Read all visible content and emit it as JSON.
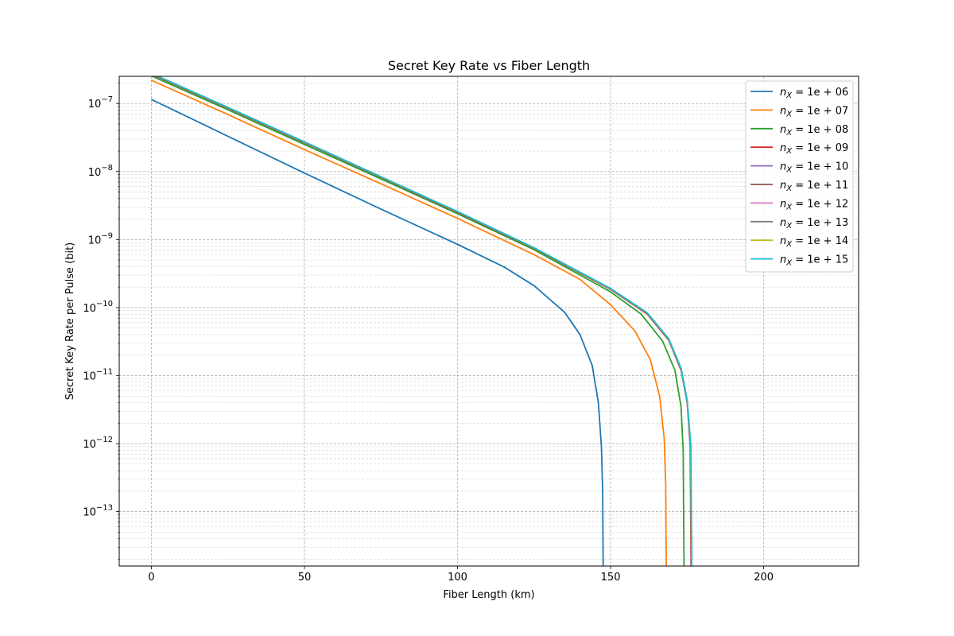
{
  "chart_data": {
    "type": "line",
    "title": "Secret Key Rate vs Fiber Length",
    "xlabel": "Fiber Length (km)",
    "ylabel": "Secret Key Rate per Pulse (bit)",
    "xlim": [
      -10.5,
      231
    ],
    "ylim_log10": [
      -13.8,
      -6.6
    ],
    "yscale": "log",
    "grid": true,
    "grid_minor": true,
    "legend_position": "upper-right",
    "x_ticks": [
      0,
      50,
      100,
      150,
      200
    ],
    "x_tick_labels": [
      "0",
      "50",
      "100",
      "150",
      "200"
    ],
    "y_ticks_log10": [
      -13,
      -12,
      -11,
      -10,
      -9,
      -8,
      -7
    ],
    "y_tick_labels": [
      "−13",
      "−12",
      "−11",
      "−10",
      "−9",
      "−8",
      "−7"
    ],
    "y_tick_base": "10",
    "series": [
      {
        "name": "n_X = 1e+06",
        "legend_var": "n",
        "legend_sub": "X",
        "legend_rhs": " = 1e + 06",
        "color": "#1f77b4",
        "points": [
          [
            0,
            1.15e-07
          ],
          [
            25,
            3.3e-08
          ],
          [
            50,
            9.5e-09
          ],
          [
            75,
            2.8e-09
          ],
          [
            100,
            8.5e-10
          ],
          [
            115,
            4e-10
          ],
          [
            125,
            2.1e-10
          ],
          [
            135,
            8.5e-11
          ],
          [
            140,
            4e-11
          ],
          [
            144,
            1.4e-11
          ],
          [
            146,
            4e-12
          ],
          [
            147,
            9e-13
          ],
          [
            147.4,
            2e-13
          ],
          [
            147.6,
            1e-14
          ]
        ]
      },
      {
        "name": "n_X = 1e+07",
        "legend_var": "n",
        "legend_sub": "X",
        "legend_rhs": " = 1e + 07",
        "color": "#ff7f0e",
        "points": [
          [
            0,
            2.2e-07
          ],
          [
            25,
            6.9e-08
          ],
          [
            50,
            2.1e-08
          ],
          [
            75,
            6.6e-09
          ],
          [
            100,
            2.05e-09
          ],
          [
            125,
            6e-10
          ],
          [
            140,
            2.6e-10
          ],
          [
            150,
            1.1e-10
          ],
          [
            158,
            4.5e-11
          ],
          [
            163,
            1.7e-11
          ],
          [
            166,
            5e-12
          ],
          [
            167.5,
            1.2e-12
          ],
          [
            168,
            2.5e-13
          ],
          [
            168.2,
            1e-14
          ]
        ]
      },
      {
        "name": "n_X = 1e+08",
        "legend_var": "n",
        "legend_sub": "X",
        "legend_rhs": " = 1e + 08",
        "color": "#2ca02c",
        "points": [
          [
            0,
            2.55e-07
          ],
          [
            25,
            8.1e-08
          ],
          [
            50,
            2.5e-08
          ],
          [
            75,
            7.8e-09
          ],
          [
            100,
            2.4e-09
          ],
          [
            125,
            7.1e-10
          ],
          [
            150,
            1.7e-10
          ],
          [
            160,
            8e-11
          ],
          [
            167,
            3.2e-11
          ],
          [
            171,
            1.2e-11
          ],
          [
            173,
            3.5e-12
          ],
          [
            173.7,
            8e-13
          ],
          [
            174,
            1e-14
          ]
        ]
      },
      {
        "name": "n_X = 1e+09",
        "legend_var": "n",
        "legend_sub": "X",
        "legend_rhs": " = 1e + 09",
        "color": "#d62728",
        "points": [
          [
            0,
            2.7e-07
          ],
          [
            25,
            8.55e-08
          ],
          [
            50,
            2.65e-08
          ],
          [
            75,
            8.2e-09
          ],
          [
            100,
            2.5e-09
          ],
          [
            125,
            7.4e-10
          ],
          [
            150,
            1.85e-10
          ],
          [
            162,
            8e-11
          ],
          [
            169,
            3.3e-11
          ],
          [
            173,
            1.2e-11
          ],
          [
            175,
            4e-12
          ],
          [
            176,
            9e-13
          ],
          [
            176.3,
            1e-14
          ]
        ]
      },
      {
        "name": "n_X = 1e+10",
        "legend_var": "n",
        "legend_sub": "X",
        "legend_rhs": " = 1e + 10",
        "color": "#9467bd",
        "points": [
          [
            0,
            2.75e-07
          ],
          [
            25,
            8.7e-08
          ],
          [
            50,
            2.7e-08
          ],
          [
            75,
            8.3e-09
          ],
          [
            100,
            2.55e-09
          ],
          [
            125,
            7.5e-10
          ],
          [
            150,
            1.88e-10
          ],
          [
            162,
            8.2e-11
          ],
          [
            169,
            3.4e-11
          ],
          [
            173,
            1.25e-11
          ],
          [
            175,
            4.2e-12
          ],
          [
            176.1,
            9e-13
          ],
          [
            176.4,
            1e-14
          ]
        ]
      },
      {
        "name": "n_X = 1e+11",
        "legend_var": "n",
        "legend_sub": "X",
        "legend_rhs": " = 1e + 11",
        "color": "#8c564b",
        "points": [
          [
            0,
            2.76e-07
          ],
          [
            25,
            8.72e-08
          ],
          [
            50,
            2.71e-08
          ],
          [
            75,
            8.32e-09
          ],
          [
            100,
            2.56e-09
          ],
          [
            125,
            7.52e-10
          ],
          [
            150,
            1.89e-10
          ],
          [
            162,
            8.25e-11
          ],
          [
            169,
            3.42e-11
          ],
          [
            173,
            1.26e-11
          ],
          [
            175,
            4.25e-12
          ],
          [
            176.1,
            9.2e-13
          ],
          [
            176.45,
            1e-14
          ]
        ]
      },
      {
        "name": "n_X = 1e+12",
        "legend_var": "n",
        "legend_sub": "X",
        "legend_rhs": " = 1e + 12",
        "color": "#e377c2",
        "points": [
          [
            0,
            2.77e-07
          ],
          [
            25,
            8.74e-08
          ],
          [
            50,
            2.72e-08
          ],
          [
            75,
            8.34e-09
          ],
          [
            100,
            2.57e-09
          ],
          [
            125,
            7.54e-10
          ],
          [
            150,
            1.9e-10
          ],
          [
            162,
            8.3e-11
          ],
          [
            169,
            3.44e-11
          ],
          [
            173,
            1.27e-11
          ],
          [
            175,
            4.3e-12
          ],
          [
            176.15,
            9.3e-13
          ],
          [
            176.5,
            1e-14
          ]
        ]
      },
      {
        "name": "n_X = 1e+13",
        "legend_var": "n",
        "legend_sub": "X",
        "legend_rhs": " = 1e + 13",
        "color": "#7f7f7f",
        "points": [
          [
            0,
            2.77e-07
          ],
          [
            25,
            8.75e-08
          ],
          [
            50,
            2.72e-08
          ],
          [
            75,
            8.35e-09
          ],
          [
            100,
            2.57e-09
          ],
          [
            125,
            7.55e-10
          ],
          [
            150,
            1.9e-10
          ],
          [
            162,
            8.3e-11
          ],
          [
            169,
            3.45e-11
          ],
          [
            173,
            1.27e-11
          ],
          [
            175,
            4.3e-12
          ],
          [
            176.15,
            9.3e-13
          ],
          [
            176.5,
            1e-14
          ]
        ]
      },
      {
        "name": "n_X = 1e+14",
        "legend_var": "n",
        "legend_sub": "X",
        "legend_rhs": " = 1e + 14",
        "color": "#bcbd22",
        "points": [
          [
            0,
            2.77e-07
          ],
          [
            25,
            8.75e-08
          ],
          [
            50,
            2.72e-08
          ],
          [
            75,
            8.35e-09
          ],
          [
            100,
            2.57e-09
          ],
          [
            125,
            7.55e-10
          ],
          [
            150,
            1.9e-10
          ],
          [
            162,
            8.3e-11
          ],
          [
            169,
            3.45e-11
          ],
          [
            173,
            1.27e-11
          ],
          [
            175,
            4.3e-12
          ],
          [
            176.15,
            9.3e-13
          ],
          [
            176.5,
            1e-14
          ]
        ]
      },
      {
        "name": "n_X = 1e+15",
        "legend_var": "n",
        "legend_sub": "X",
        "legend_rhs": " = 1e + 15",
        "color": "#17becf",
        "points": [
          [
            0,
            2.78e-07
          ],
          [
            25,
            8.76e-08
          ],
          [
            50,
            2.73e-08
          ],
          [
            75,
            8.36e-09
          ],
          [
            100,
            2.58e-09
          ],
          [
            125,
            7.56e-10
          ],
          [
            150,
            1.91e-10
          ],
          [
            162,
            8.32e-11
          ],
          [
            169,
            3.46e-11
          ],
          [
            173,
            1.28e-11
          ],
          [
            175,
            4.32e-12
          ],
          [
            176.2,
            9.4e-13
          ],
          [
            176.55,
            1e-14
          ]
        ]
      }
    ]
  }
}
